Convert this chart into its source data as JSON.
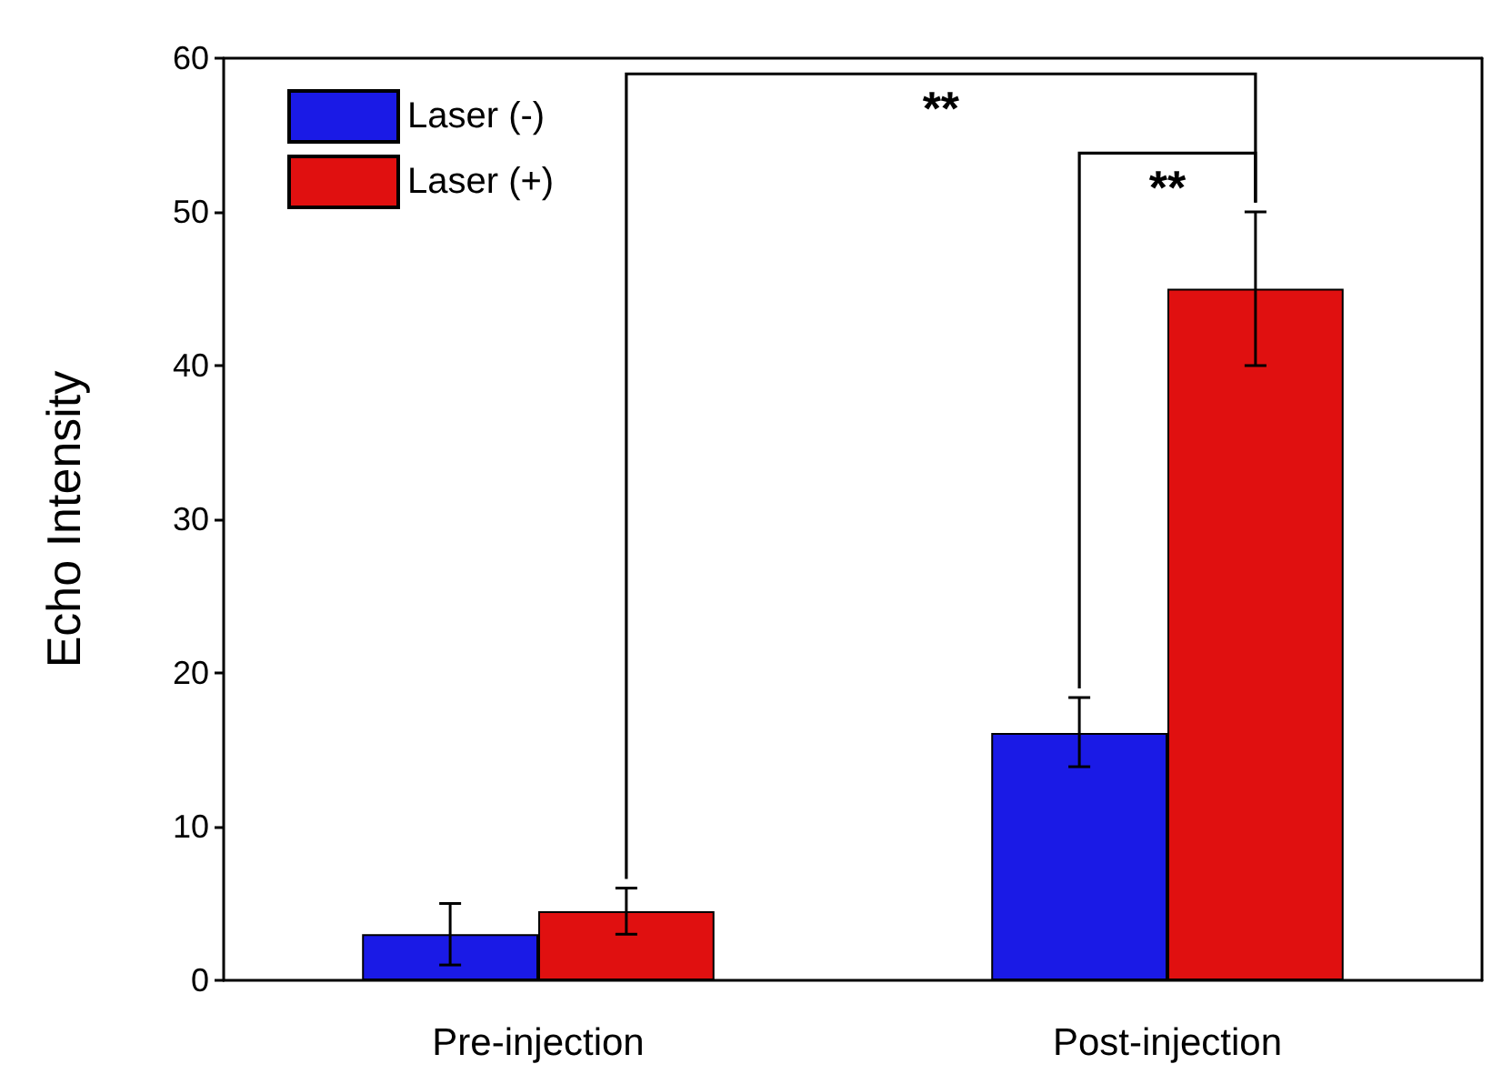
{
  "chart_data": {
    "type": "bar",
    "ylabel": "Echo Intensity",
    "categories": [
      "Pre-injection",
      "Post-injection"
    ],
    "series": [
      {
        "name": "Laser (-)",
        "color": "#1a1ae6",
        "values": [
          3,
          16.1
        ],
        "errors": [
          2,
          [
            13.9,
            18.4
          ]
        ]
      },
      {
        "name": "Laser (+)",
        "color": "#e01010",
        "values": [
          4.5,
          45
        ],
        "errors": [
          1.5,
          5
        ]
      }
    ],
    "ylim": [
      0,
      60
    ],
    "yticks": [
      0,
      10,
      20,
      30,
      40,
      50,
      60
    ],
    "grid": false,
    "legend": "top left",
    "annotations": [
      "**",
      "**"
    ]
  }
}
